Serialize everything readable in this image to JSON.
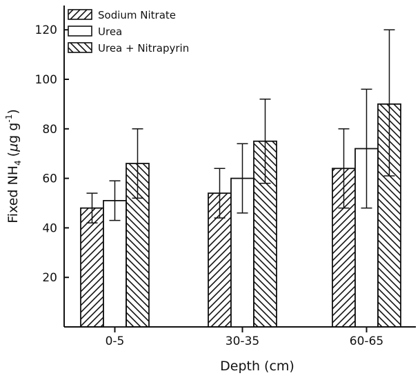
{
  "chart_data": {
    "type": "bar",
    "categories": [
      "0-5",
      "30-35",
      "60-65"
    ],
    "series": [
      {
        "name": "Sodium Nitrate",
        "pattern": "hatch-forward",
        "values": [
          48,
          54,
          64
        ],
        "error_low": [
          42,
          44,
          48
        ],
        "error_high": [
          54,
          64,
          80
        ]
      },
      {
        "name": "Urea",
        "pattern": "none",
        "values": [
          51,
          60,
          72
        ],
        "error_low": [
          43,
          46,
          48
        ],
        "error_high": [
          59,
          74,
          96
        ]
      },
      {
        "name": "Urea + Nitrapyrin",
        "pattern": "hatch-backward",
        "values": [
          66,
          75,
          90
        ],
        "error_low": [
          52,
          58,
          61
        ],
        "error_high": [
          80,
          92,
          120
        ]
      }
    ],
    "xlabel": "Depth (cm)",
    "ylabel": "Fixed NH",
    "ylabel_subscript": "4",
    "ylabel_units_prefix": "(",
    "ylabel_units_mu": "μ",
    "ylabel_units_g": "g g",
    "ylabel_units_exp": "-1",
    "ylabel_units_suffix": ")",
    "yticks": [
      "20",
      "40",
      "60",
      "80",
      "100",
      "120"
    ],
    "ylim": [
      0,
      130
    ],
    "grid": false,
    "legend_position": "top-left",
    "color": "#111111"
  }
}
